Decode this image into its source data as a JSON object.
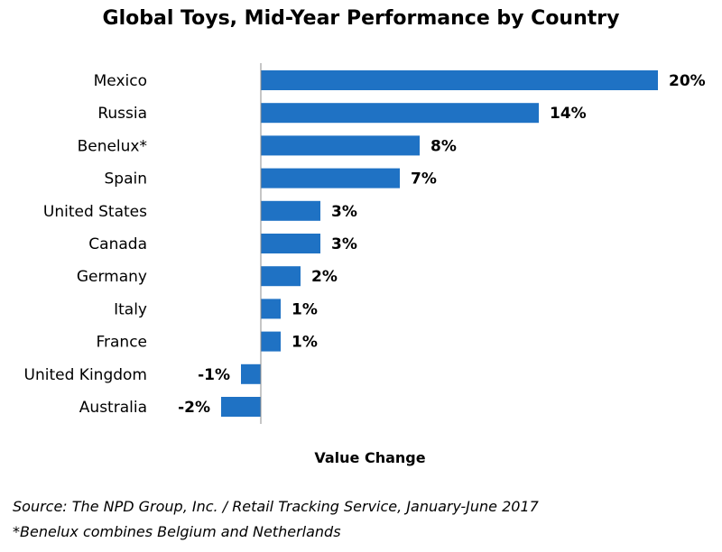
{
  "chart_data": {
    "type": "bar",
    "orientation": "horizontal",
    "title": "Global Toys, Mid-Year Performance by Country",
    "xlabel": "Value Change",
    "ylabel": "",
    "categories": [
      "Mexico",
      "Russia",
      "Benelux*",
      "Spain",
      "United States",
      "Canada",
      "Germany",
      "Italy",
      "France",
      "United Kingdom",
      "Australia"
    ],
    "values": [
      20,
      14,
      8,
      7,
      3,
      3,
      2,
      1,
      1,
      -1,
      -2
    ],
    "value_labels": [
      "20%",
      "14%",
      "8%",
      "7%",
      "3%",
      "3%",
      "2%",
      "1%",
      "1%",
      "-1%",
      "-2%"
    ],
    "unit": "%",
    "xlim": [
      -2,
      20
    ],
    "bar_color": "#1f72c4",
    "grid": false
  },
  "footer": {
    "source": "Source: The NPD Group, Inc. / Retail Tracking Service, January-June 2017",
    "note": "*Benelux combines Belgium and Netherlands"
  }
}
